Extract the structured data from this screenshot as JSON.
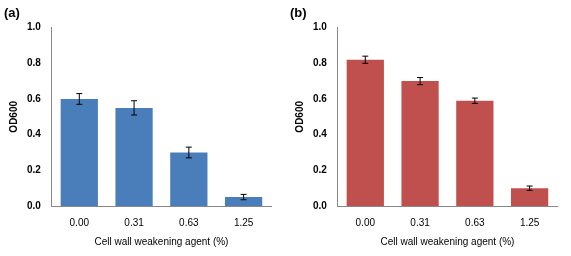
{
  "chart_data": [
    {
      "type": "bar",
      "title": "(a)",
      "x_label": "Cell wall weakening agent (%)",
      "y_label": "OD600",
      "categories": [
        "0.00",
        "0.31",
        "0.63",
        "1.25"
      ],
      "values": [
        0.6,
        0.55,
        0.3,
        0.05
      ],
      "errors": [
        0.03,
        0.04,
        0.03,
        0.015
      ],
      "color": "#4a7ebb",
      "ylim": [
        0,
        1
      ],
      "yticks": [
        {
          "value": 0,
          "label": "0.0"
        },
        0.2,
        0.4,
        0.6,
        0.8,
        {
          "value": 1,
          "label": "1.0"
        }
      ],
      "grid": false
    },
    {
      "type": "bar",
      "title": "(b)",
      "x_label": "Cell wall weakening agent (%)",
      "y_label": "OD600",
      "categories": [
        "0.00",
        "0.31",
        "0.63",
        "1.25"
      ],
      "values": [
        0.82,
        0.7,
        0.59,
        0.1
      ],
      "errors": [
        0.02,
        0.02,
        0.015,
        0.012
      ],
      "color": "#c0504d",
      "ylim": [
        0,
        1
      ],
      "yticks": [
        {
          "value": 0,
          "label": "0.0"
        },
        0.2,
        0.4,
        0.6,
        0.8,
        {
          "value": 1,
          "label": "1.0"
        }
      ],
      "grid": false
    }
  ]
}
